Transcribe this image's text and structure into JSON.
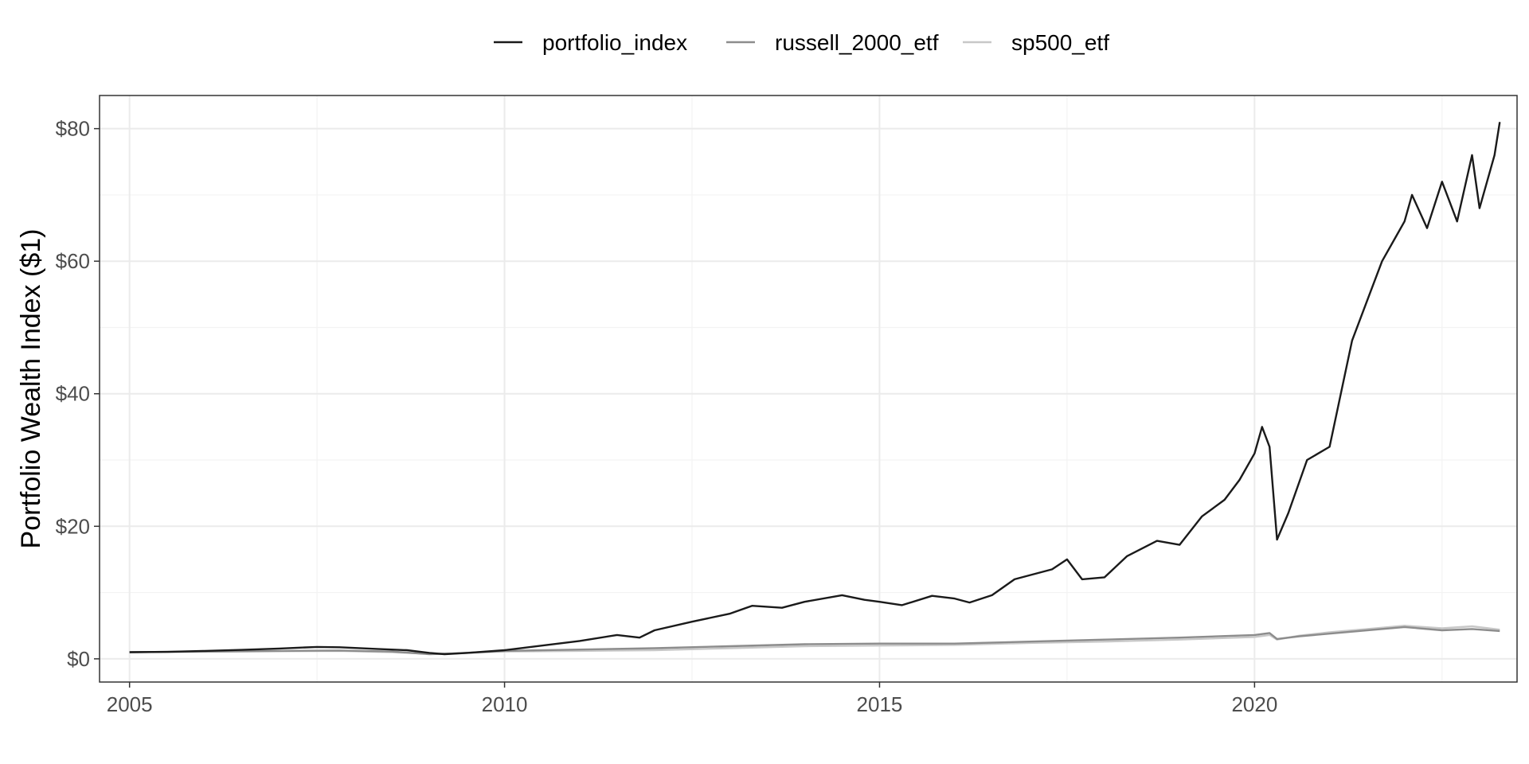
{
  "chart_data": {
    "type": "line",
    "title": "",
    "xlabel": "",
    "ylabel": "Portfolio Wealth Index ($1)",
    "xlim": [
      2004.6,
      2023.5
    ],
    "ylim": [
      -3.5,
      85
    ],
    "x_ticks": [
      2005,
      2010,
      2015,
      2020
    ],
    "x_tick_labels": [
      "2005",
      "2010",
      "2015",
      "2020"
    ],
    "y_ticks": [
      0,
      20,
      40,
      60,
      80
    ],
    "y_tick_labels": [
      "$0",
      "$20",
      "$40",
      "$60",
      "$80"
    ],
    "grid": true,
    "legend_position": "top",
    "series": [
      {
        "name": "portfolio_index",
        "color": "#1a1a1a",
        "points": [
          [
            2005.0,
            1.0
          ],
          [
            2005.5,
            1.05
          ],
          [
            2006.0,
            1.2
          ],
          [
            2006.5,
            1.35
          ],
          [
            2007.0,
            1.55
          ],
          [
            2007.5,
            1.8
          ],
          [
            2007.8,
            1.75
          ],
          [
            2008.3,
            1.5
          ],
          [
            2008.7,
            1.3
          ],
          [
            2009.0,
            0.9
          ],
          [
            2009.2,
            0.7
          ],
          [
            2009.5,
            0.9
          ],
          [
            2010.0,
            1.3
          ],
          [
            2010.5,
            2.0
          ],
          [
            2011.0,
            2.7
          ],
          [
            2011.5,
            3.6
          ],
          [
            2011.8,
            3.2
          ],
          [
            2012.0,
            4.3
          ],
          [
            2012.5,
            5.6
          ],
          [
            2013.0,
            6.8
          ],
          [
            2013.3,
            8.0
          ],
          [
            2013.7,
            7.7
          ],
          [
            2014.0,
            8.6
          ],
          [
            2014.5,
            9.6
          ],
          [
            2014.8,
            8.9
          ],
          [
            2015.0,
            8.6
          ],
          [
            2015.3,
            8.1
          ],
          [
            2015.7,
            9.5
          ],
          [
            2016.0,
            9.1
          ],
          [
            2016.2,
            8.5
          ],
          [
            2016.5,
            9.6
          ],
          [
            2016.8,
            12.0
          ],
          [
            2017.0,
            12.6
          ],
          [
            2017.3,
            13.5
          ],
          [
            2017.5,
            15.0
          ],
          [
            2017.7,
            12.0
          ],
          [
            2018.0,
            12.3
          ],
          [
            2018.3,
            15.5
          ],
          [
            2018.7,
            17.8
          ],
          [
            2019.0,
            17.2
          ],
          [
            2019.3,
            21.5
          ],
          [
            2019.6,
            24.0
          ],
          [
            2019.8,
            27.0
          ],
          [
            2020.0,
            31.0
          ],
          [
            2020.1,
            35.0
          ],
          [
            2020.2,
            32.0
          ],
          [
            2020.3,
            18.0
          ],
          [
            2020.45,
            22.0
          ],
          [
            2020.7,
            30.0
          ],
          [
            2021.0,
            32.0
          ],
          [
            2021.3,
            48.0
          ],
          [
            2021.5,
            54.0
          ],
          [
            2021.7,
            60.0
          ],
          [
            2021.9,
            64.0
          ],
          [
            2022.0,
            66.0
          ],
          [
            2022.1,
            70.0
          ],
          [
            2022.3,
            65.0
          ],
          [
            2022.5,
            72.0
          ],
          [
            2022.7,
            66.0
          ],
          [
            2022.9,
            76.0
          ],
          [
            2023.0,
            68.0
          ],
          [
            2023.1,
            72.0
          ],
          [
            2023.2,
            76.0
          ],
          [
            2023.27,
            81.0
          ]
        ]
      },
      {
        "name": "russell_2000_etf",
        "color": "#8c8c8c",
        "points": [
          [
            2005.0,
            1.0
          ],
          [
            2006.0,
            1.1
          ],
          [
            2007.0,
            1.2
          ],
          [
            2007.8,
            1.25
          ],
          [
            2008.5,
            1.1
          ],
          [
            2009.0,
            0.7
          ],
          [
            2009.3,
            0.8
          ],
          [
            2010.0,
            1.2
          ],
          [
            2011.0,
            1.4
          ],
          [
            2012.0,
            1.6
          ],
          [
            2013.0,
            1.9
          ],
          [
            2014.0,
            2.2
          ],
          [
            2015.0,
            2.3
          ],
          [
            2016.0,
            2.3
          ],
          [
            2017.0,
            2.6
          ],
          [
            2018.0,
            2.9
          ],
          [
            2019.0,
            3.2
          ],
          [
            2020.0,
            3.6
          ],
          [
            2020.2,
            3.9
          ],
          [
            2020.3,
            3.0
          ],
          [
            2020.6,
            3.4
          ],
          [
            2021.0,
            3.8
          ],
          [
            2021.5,
            4.3
          ],
          [
            2022.0,
            4.8
          ],
          [
            2022.5,
            4.3
          ],
          [
            2022.9,
            4.5
          ],
          [
            2023.27,
            4.2
          ]
        ]
      },
      {
        "name": "sp500_etf",
        "color": "#c8c8c8",
        "points": [
          [
            2005.0,
            1.0
          ],
          [
            2006.0,
            1.05
          ],
          [
            2007.0,
            1.15
          ],
          [
            2007.8,
            1.2
          ],
          [
            2008.5,
            1.0
          ],
          [
            2009.0,
            0.75
          ],
          [
            2009.3,
            0.8
          ],
          [
            2010.0,
            1.1
          ],
          [
            2011.0,
            1.2
          ],
          [
            2012.0,
            1.3
          ],
          [
            2013.0,
            1.6
          ],
          [
            2014.0,
            1.9
          ],
          [
            2015.0,
            2.0
          ],
          [
            2016.0,
            2.1
          ],
          [
            2017.0,
            2.4
          ],
          [
            2018.0,
            2.6
          ],
          [
            2019.0,
            2.9
          ],
          [
            2020.0,
            3.3
          ],
          [
            2020.2,
            3.6
          ],
          [
            2020.3,
            2.9
          ],
          [
            2020.6,
            3.5
          ],
          [
            2021.0,
            4.0
          ],
          [
            2021.5,
            4.5
          ],
          [
            2022.0,
            5.0
          ],
          [
            2022.5,
            4.6
          ],
          [
            2022.9,
            4.9
          ],
          [
            2023.27,
            4.4
          ]
        ]
      }
    ]
  }
}
